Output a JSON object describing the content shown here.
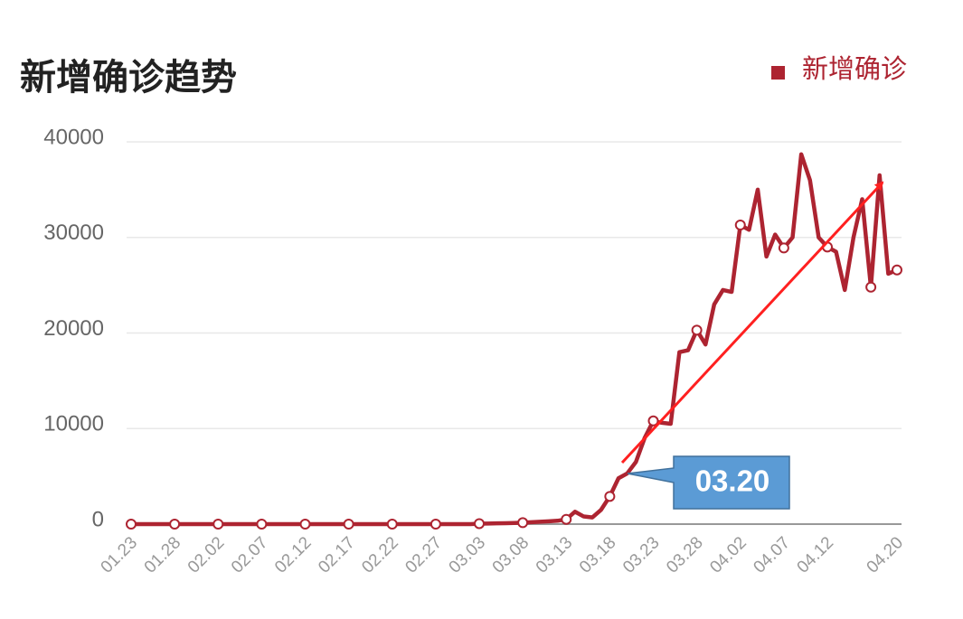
{
  "chart_data": {
    "type": "line",
    "title": "新增确诊趋势",
    "annotation": "03.20",
    "categories": [
      "01.23",
      null,
      null,
      null,
      null,
      "01.28",
      null,
      null,
      null,
      null,
      "02.02",
      null,
      null,
      null,
      null,
      "02.07",
      null,
      null,
      null,
      null,
      "02.12",
      null,
      null,
      null,
      null,
      "02.17",
      null,
      null,
      null,
      null,
      "02.22",
      null,
      null,
      null,
      null,
      "02.27",
      null,
      null,
      null,
      null,
      "03.03",
      null,
      null,
      null,
      null,
      "03.08",
      null,
      null,
      null,
      null,
      "03.13",
      null,
      null,
      null,
      null,
      "03.18",
      null,
      null,
      null,
      null,
      "03.23",
      null,
      null,
      null,
      null,
      "03.28",
      null,
      null,
      null,
      null,
      "04.02",
      null,
      null,
      null,
      null,
      "04.07",
      null,
      null,
      null,
      null,
      "04.12",
      null,
      null,
      null,
      null,
      null,
      null,
      null,
      "04.20"
    ],
    "series": [
      {
        "name": "新增确诊",
        "color": "#ad2431",
        "values": [
          0,
          0,
          0,
          0,
          0,
          0,
          0,
          0,
          0,
          0,
          0,
          0,
          0,
          0,
          0,
          0,
          0,
          0,
          0,
          0,
          0,
          0,
          0,
          0,
          0,
          0,
          0,
          0,
          0,
          0,
          0,
          0,
          0,
          0,
          0,
          0,
          0,
          0,
          0,
          0,
          50,
          60,
          80,
          100,
          120,
          150,
          200,
          250,
          300,
          350,
          500,
          1300,
          800,
          700,
          1500,
          2900,
          4800,
          5300,
          6500,
          9000,
          10800,
          10600,
          10500,
          18000,
          18200,
          20300,
          18800,
          23000,
          24500,
          24300,
          31300,
          30800,
          35000,
          28000,
          30300,
          28900,
          30000,
          38700,
          36000,
          30000,
          29000,
          28500,
          24500,
          30000,
          34000,
          24800,
          36500,
          26200,
          26600
        ]
      }
    ],
    "ylim": [
      0,
      40000
    ],
    "yticks": [
      0,
      10000,
      20000,
      30000,
      40000
    ],
    "grid": true,
    "legend": "top-right"
  }
}
